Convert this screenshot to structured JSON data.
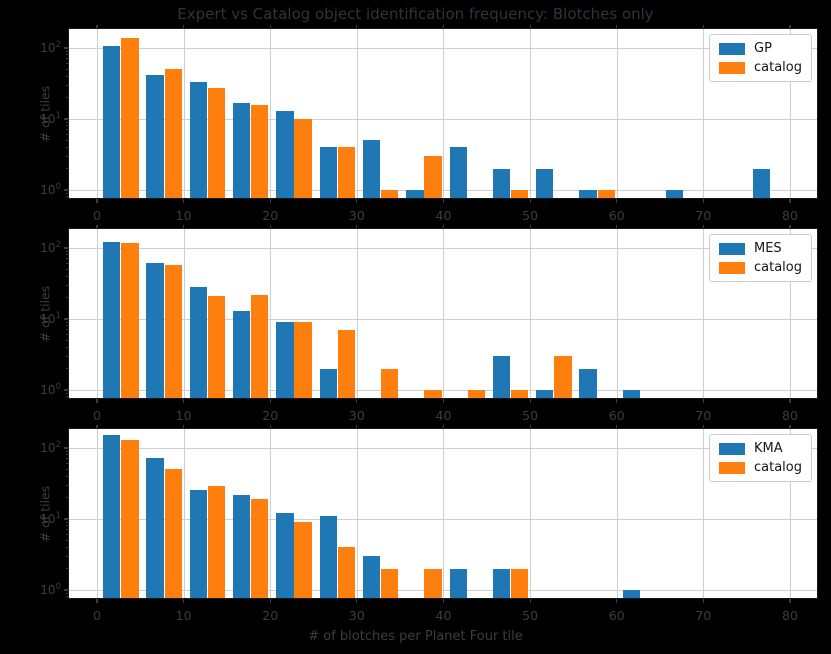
{
  "figure": {
    "title": "Expert vs Catalog object identification frequency: Blotches only",
    "xlabel": "# of blotches per Planet Four tile",
    "ylabel": "# of tiles",
    "background_color": "#000000",
    "axes_background_color": "#ffffff",
    "grid_color": "#cfcfcf",
    "text_color": "#3d3d3d",
    "expert_color": "#1f77b4",
    "catalog_color": "#ff7f0e"
  },
  "chart_data": [
    {
      "type": "bar",
      "panel": "GP vs catalog",
      "yscale": "log",
      "grid": true,
      "legend_position": "upper right",
      "xlim": [
        -3.4,
        83.3
      ],
      "ylim": [
        0.75,
        200
      ],
      "xticks": [
        0,
        10,
        20,
        30,
        40,
        50,
        60,
        70,
        80
      ],
      "yticks": [
        1,
        10,
        100
      ],
      "bin_width": 5,
      "bin_start": [
        0,
        5,
        10,
        15,
        20,
        25,
        30,
        35,
        40,
        45,
        50,
        55,
        60,
        65,
        70,
        75
      ],
      "series": [
        {
          "name": "GP",
          "color": "#1f77b4",
          "values": [
            105,
            41,
            33,
            17,
            13,
            4,
            5,
            1,
            4,
            2,
            2,
            1,
            0,
            1,
            0,
            2
          ]
        },
        {
          "name": "catalog",
          "color": "#ff7f0e",
          "values": [
            140,
            51,
            27,
            16,
            10,
            4,
            1,
            3,
            0,
            1,
            0,
            1,
            0,
            0,
            0,
            0
          ]
        }
      ]
    },
    {
      "type": "bar",
      "panel": "MES vs catalog",
      "yscale": "log",
      "grid": true,
      "legend_position": "upper right",
      "xlim": [
        -3.4,
        83.3
      ],
      "ylim": [
        0.75,
        200
      ],
      "xticks": [
        0,
        10,
        20,
        30,
        40,
        50,
        60,
        70,
        80
      ],
      "yticks": [
        1,
        10,
        100
      ],
      "bin_width": 5,
      "bin_start": [
        0,
        5,
        10,
        15,
        20,
        25,
        30,
        35,
        40,
        45,
        50,
        55,
        60,
        65,
        70,
        75
      ],
      "series": [
        {
          "name": "MES",
          "color": "#1f77b4",
          "values": [
            122,
            61,
            28,
            13,
            9,
            2,
            0,
            0,
            0,
            3,
            1,
            2,
            1,
            0,
            0,
            0
          ]
        },
        {
          "name": "catalog",
          "color": "#ff7f0e",
          "values": [
            118,
            57,
            21,
            22,
            9,
            7,
            2,
            1,
            1,
            1,
            3,
            0,
            0,
            0,
            0,
            0
          ]
        }
      ]
    },
    {
      "type": "bar",
      "panel": "KMA vs catalog",
      "yscale": "log",
      "grid": true,
      "legend_position": "upper right",
      "xlim": [
        -3.4,
        83.3
      ],
      "ylim": [
        0.75,
        200
      ],
      "xticks": [
        0,
        10,
        20,
        30,
        40,
        50,
        60,
        70,
        80
      ],
      "yticks": [
        1,
        10,
        100
      ],
      "bin_width": 5,
      "bin_start": [
        0,
        5,
        10,
        15,
        20,
        25,
        30,
        35,
        40,
        45,
        50,
        55,
        60,
        65,
        70,
        75
      ],
      "series": [
        {
          "name": "KMA",
          "color": "#1f77b4",
          "values": [
            150,
            72,
            26,
            22,
            12,
            11,
            3,
            0,
            2,
            2,
            0,
            0,
            1,
            0,
            0,
            0
          ]
        },
        {
          "name": "catalog",
          "color": "#ff7f0e",
          "values": [
            128,
            50,
            29,
            19,
            9,
            4,
            2,
            2,
            0,
            2,
            0,
            0,
            0,
            0,
            0,
            0
          ]
        }
      ]
    }
  ]
}
